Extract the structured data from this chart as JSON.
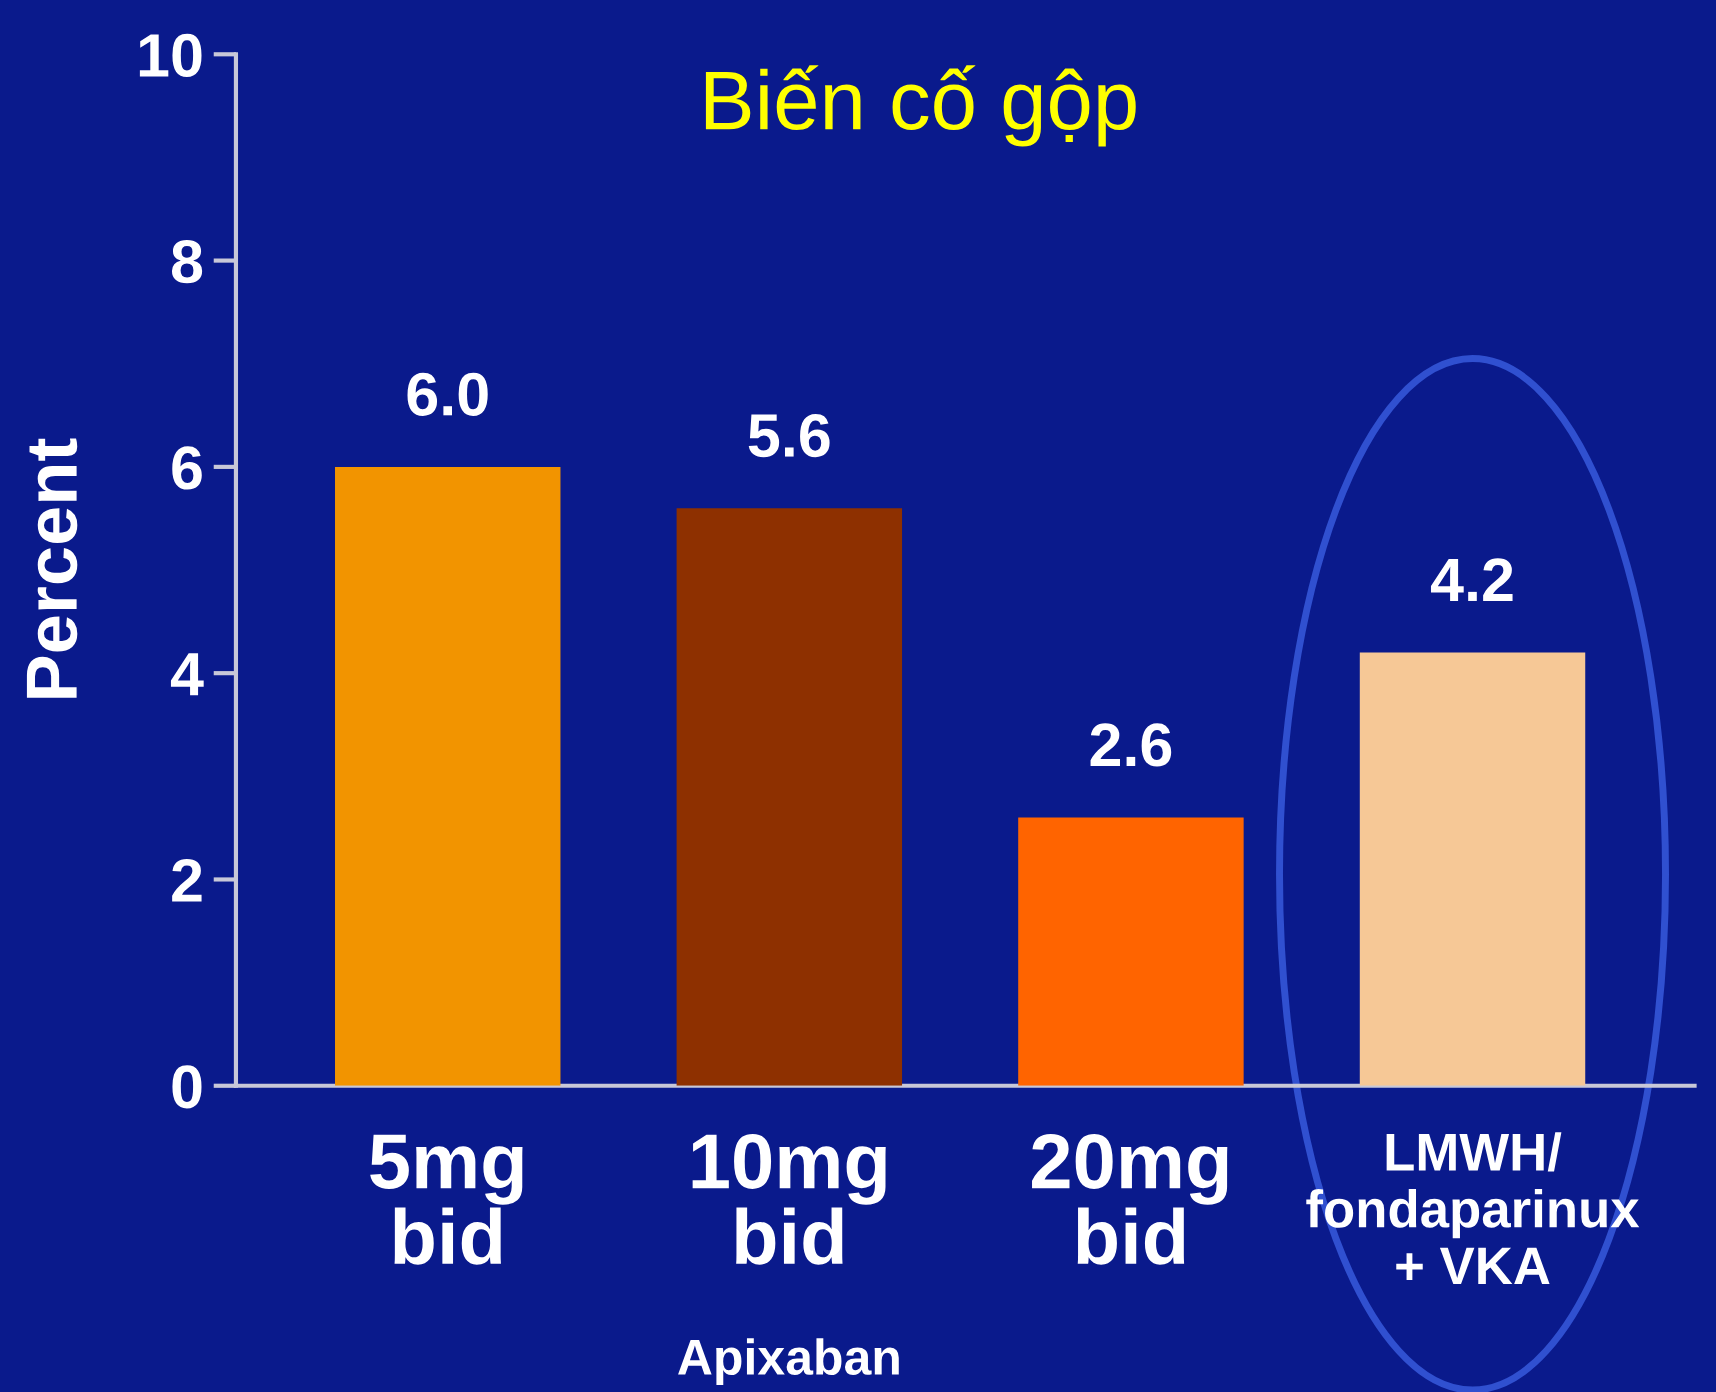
{
  "chart_data": {
    "type": "bar",
    "title": "Biến cố gộp",
    "ylabel": "Percent",
    "categories": [
      "5mg\nbid",
      "10mg\nbid",
      "20mg\nbid",
      "LMWH/\nfondaparinux\n+ VKA"
    ],
    "values": [
      6.0,
      5.6,
      2.6,
      4.2
    ],
    "colors": [
      "#f29400",
      "#8e3000",
      "#ff6400",
      "#f6c896"
    ],
    "value_labels": [
      "6.0",
      "5.6",
      "2.6",
      "4.2"
    ],
    "ylim": [
      0,
      10
    ],
    "yticks": [
      0,
      2,
      4,
      6,
      8,
      10
    ],
    "grid": false,
    "annotations": [
      "Apixaban"
    ]
  }
}
